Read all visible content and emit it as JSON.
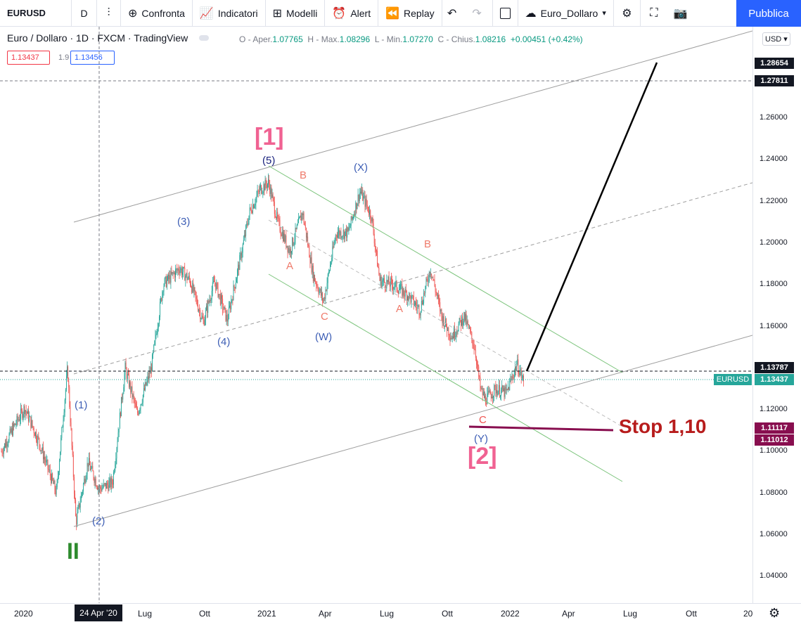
{
  "toolbar": {
    "symbol": "EURUSD",
    "interval": "D",
    "compare_label": "Confronta",
    "indicators_label": "Indicatori",
    "templates_label": "Modelli",
    "alert_label": "Alert",
    "replay_label": "Replay",
    "layout_name": "Euro_Dollaro",
    "publish_label": "Pubblica"
  },
  "legend": {
    "title": "Euro / Dollaro · 1D · FXCM · TradingView",
    "ohlc_prefix_o": "O - Aper.",
    "open": "1.07765",
    "ohlc_prefix_h": "H - Max.",
    "high": "1.08296",
    "ohlc_prefix_l": "L - Min.",
    "low": "1.07270",
    "ohlc_prefix_c": "C - Chius.",
    "close": "1.08216",
    "change": "+0.00451 (+0.42%)",
    "sell_price": "1.13437",
    "spread": "1.9",
    "buy_price": "1.13456"
  },
  "axis": {
    "currency": "USD",
    "y_ticks": [
      "1.26000",
      "1.24000",
      "1.22000",
      "1.20000",
      "1.18000",
      "1.16000",
      "1.12000",
      "1.10000",
      "1.08000",
      "1.06000",
      "1.04000"
    ],
    "x_ticks": [
      "2020",
      "Lug",
      "Ott",
      "2021",
      "Apr",
      "Lug",
      "Ott",
      "2022",
      "Apr",
      "Lug",
      "Ott",
      "20"
    ],
    "x_highlight": "24 Apr '20",
    "price_labels": {
      "top1": "1.28654",
      "top2": "1.27811",
      "crosshair": "1.13787",
      "symbol_tag": "EURUSD",
      "last": "1.13437",
      "stop1": "1.11117",
      "stop2": "1.11012"
    }
  },
  "chart_data": {
    "type": "candlestick",
    "symbol": "EURUSD",
    "timeframe": "1D",
    "ylim": [
      1.03,
      1.3
    ],
    "x_range": [
      "2019-11",
      "2023-01"
    ],
    "key_points": [
      {
        "date": "2020-03",
        "price": 1.064,
        "label": "(2)"
      },
      {
        "date": "2020-09",
        "price": 1.201,
        "label": "(3)"
      },
      {
        "date": "2020-11",
        "price": 1.16,
        "label": "(4)"
      },
      {
        "date": "2021-01",
        "price": 1.235,
        "label": "(5)"
      },
      {
        "date": "2021-03",
        "price": 1.17,
        "label": "(W)"
      },
      {
        "date": "2021-05",
        "price": 1.227,
        "label": "(X)"
      },
      {
        "date": "2021-11",
        "price": 1.119,
        "label": "(Y)"
      },
      {
        "date": "2022-01",
        "price": 1.137
      }
    ],
    "projection": {
      "from_price": 1.137,
      "to_price": 1.282
    },
    "stop_level": 1.11
  },
  "annotations": {
    "wave1": "[1]",
    "wave2": "[2]",
    "wave_II": "II",
    "w1": "(1)",
    "w2": "(2)",
    "w3": "(3)",
    "w4": "(4)",
    "w5": "(5)",
    "wW": "(W)",
    "wX": "(X)",
    "wY": "(Y)",
    "a1": "A",
    "b1": "B",
    "c1": "C",
    "a2": "A",
    "b2": "B",
    "c2": "C",
    "stop": "Stop 1,10"
  },
  "colors": {
    "up": "#26a69a",
    "down": "#ef5350",
    "wave_blue": "#3d5eb5",
    "wave_red": "#ef7a6a",
    "wave_pink": "#f06292",
    "wave_green": "#2e8b2e",
    "stop_red": "#b71c1c",
    "stop_line": "#880e4f",
    "channel_green": "#7cc47c",
    "channel_gray": "#9e9e9e"
  }
}
